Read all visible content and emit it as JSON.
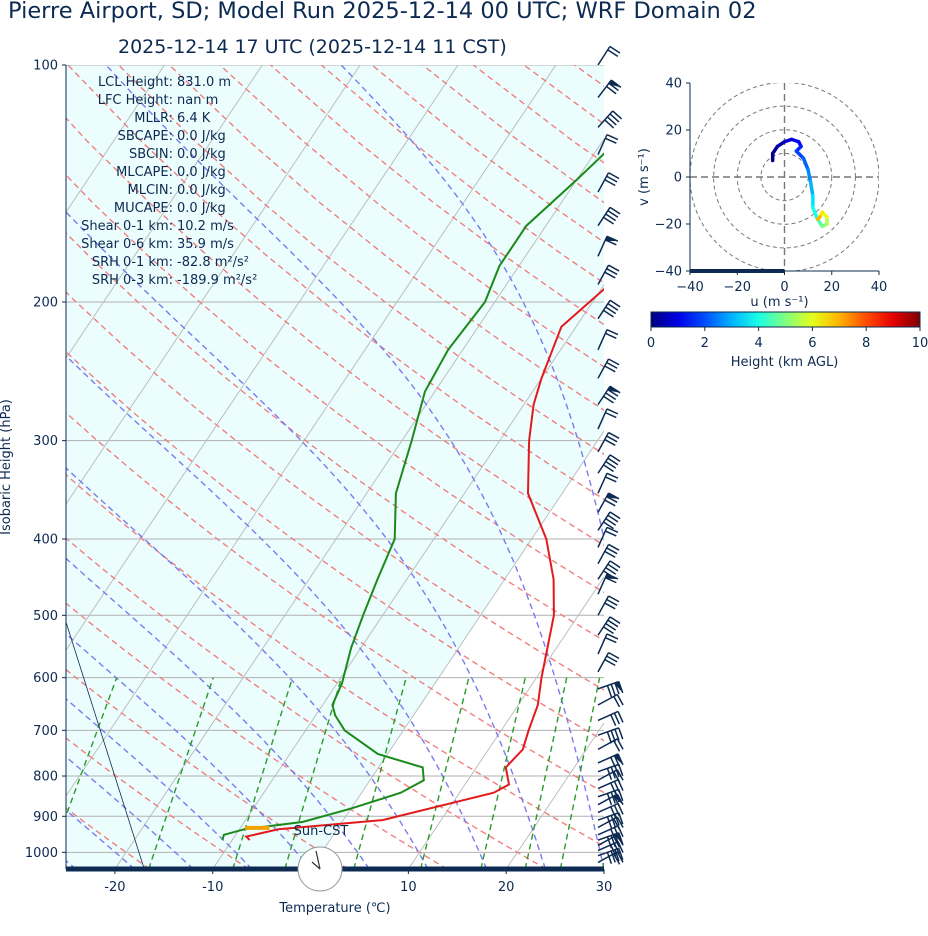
{
  "title": "Pierre Airport, SD; Model Run 2025-12-14 00 UTC; WRF Domain 02",
  "subtitle": "2025-12-14 17 UTC  (2025-12-14 11 CST)",
  "chart_data": [
    {
      "type": "line",
      "kind": "skew-t log-p sounding",
      "xlabel": "Temperature (℃)",
      "ylabel": "Isobaric Height (hPa)",
      "xlim": [
        -25,
        30
      ],
      "ylim_hpa": [
        1050,
        100
      ],
      "log_y": true,
      "x_ticks": [
        -20,
        -10,
        10,
        20,
        30
      ],
      "y_ticks": [
        100,
        200,
        300,
        400,
        500,
        600,
        700,
        800,
        900,
        1000
      ],
      "grid": true,
      "series": [
        {
          "name": "",
          "role": "temperature",
          "color": "#e31a1c",
          "points": [
            [
              -8.2,
              965
            ],
            [
              -8.8,
              955
            ],
            [
              -6,
              935
            ],
            [
              4,
              910
            ],
            [
              13.5,
              840
            ],
            [
              14.5,
              820
            ],
            [
              13,
              780
            ],
            [
              13.5,
              740
            ],
            [
              12.8,
              700
            ],
            [
              12,
              650
            ],
            [
              10.5,
              600
            ],
            [
              7.5,
              500
            ],
            [
              5,
              450
            ],
            [
              1.5,
              400
            ],
            [
              -3.5,
              350
            ],
            [
              -7,
              300
            ],
            [
              -9,
              270
            ],
            [
              -10,
              250
            ],
            [
              -11.5,
              215
            ],
            [
              -9.5,
              190
            ],
            [
              -6,
              165
            ],
            [
              -3,
              145
            ],
            [
              1,
              125
            ],
            [
              4,
              110
            ],
            [
              6,
              100
            ]
          ]
        },
        {
          "name": "",
          "role": "dewpoint",
          "color": "#1a8a1a",
          "points": [
            [
              -11,
              965
            ],
            [
              -11.2,
              950
            ],
            [
              -9.5,
              935
            ],
            [
              -4,
              915
            ],
            [
              0,
              880
            ],
            [
              4,
              840
            ],
            [
              5.5,
              810
            ],
            [
              4.5,
              780
            ],
            [
              -1,
              750
            ],
            [
              -6,
              700
            ],
            [
              -8,
              670
            ],
            [
              -9,
              650
            ],
            [
              -9.5,
              610
            ],
            [
              -11,
              550
            ],
            [
              -12,
              500
            ],
            [
              -13,
              450
            ],
            [
              -14,
              400
            ],
            [
              -17,
              350
            ],
            [
              -19,
              300
            ],
            [
              -21,
              260
            ],
            [
              -21.5,
              230
            ],
            [
              -21,
              200
            ],
            [
              -22,
              180
            ],
            [
              -22,
              160
            ],
            [
              -20,
              140
            ],
            [
              -18.5,
              125
            ],
            [
              -16,
              110
            ],
            [
              -13.5,
              100
            ]
          ]
        },
        {
          "name": "",
          "role": "parcel/LCL marker",
          "color": "#f4a300",
          "points": [
            [
              -9.5,
              931
            ],
            [
              -7,
              931
            ]
          ]
        }
      ],
      "background_lines": [
        "dry adiabats (red dashed)",
        "moist adiabats (blue dashed)",
        "mixing ratio lines (green dashed)",
        "isotherms (gray, skewed)"
      ],
      "shaded_region": "below-freezing area (light cyan)",
      "wind_barbs": "right edge, 100–1000 hPa",
      "annotation": "Sun-CST",
      "indices": [
        {
          "label": "LCL Height:",
          "value": "831.0 m"
        },
        {
          "label": "LFC Height:",
          "value": "nan m"
        },
        {
          "label": "MLLR:",
          "value": "6.4 K"
        },
        {
          "label": "SBCAPE:",
          "value": "0.0 J/kg"
        },
        {
          "label": "SBCIN:",
          "value": "0.0 J/kg"
        },
        {
          "label": "MLCAPE:",
          "value": "0.0 J/kg"
        },
        {
          "label": "MLCIN:",
          "value": "0.0 J/kg"
        },
        {
          "label": "MUCAPE:",
          "value": "0.0 J/kg"
        },
        {
          "label": "Shear 0-1 km:",
          "value": "10.2 m/s"
        },
        {
          "label": "Shear 0-6 km:",
          "value": "35.9 m/s"
        },
        {
          "label": "SRH 0-1 km:",
          "value": "-82.8 m²/s²"
        },
        {
          "label": "SRH 0-3 km:",
          "value": "-189.9 m²/s²"
        }
      ]
    },
    {
      "type": "line",
      "kind": "hodograph",
      "xlabel": "u (m s⁻¹)",
      "ylabel": "v (m s⁻¹)",
      "xlim": [
        -40,
        40
      ],
      "ylim": [
        -40,
        40
      ],
      "x_ticks": [
        -40,
        -20,
        0,
        20,
        40
      ],
      "y_ticks": [
        40,
        20,
        0,
        -20,
        -40
      ],
      "range_rings": [
        10,
        20,
        30,
        40
      ],
      "colorbar": {
        "label": "Height (km AGL)",
        "range": [
          0,
          10
        ],
        "ticks": [
          0,
          2,
          4,
          6,
          8,
          10
        ],
        "colormap": "jet"
      },
      "series": [
        {
          "name": "",
          "points_uv_h": [
            [
              -5,
              7,
              0.0
            ],
            [
              -5,
              10,
              0.2
            ],
            [
              -3,
              13,
              0.4
            ],
            [
              0,
              15,
              0.7
            ],
            [
              3,
              16,
              1.0
            ],
            [
              6,
              15,
              1.3
            ],
            [
              7,
              13,
              1.6
            ],
            [
              5,
              11,
              1.9
            ],
            [
              8,
              8,
              2.2
            ],
            [
              10,
              3,
              2.6
            ],
            [
              11,
              -2,
              3.0
            ],
            [
              12,
              -8,
              3.5
            ],
            [
              12,
              -13,
              4.0
            ],
            [
              14,
              -18,
              4.5
            ],
            [
              16,
              -21,
              5.0
            ],
            [
              18,
              -20,
              5.5
            ],
            [
              18,
              -17,
              6.0
            ],
            [
              16,
              -15,
              6.5
            ],
            [
              15,
              -17,
              7.0
            ],
            [
              14,
              -18,
              7.5
            ]
          ]
        }
      ]
    }
  ]
}
